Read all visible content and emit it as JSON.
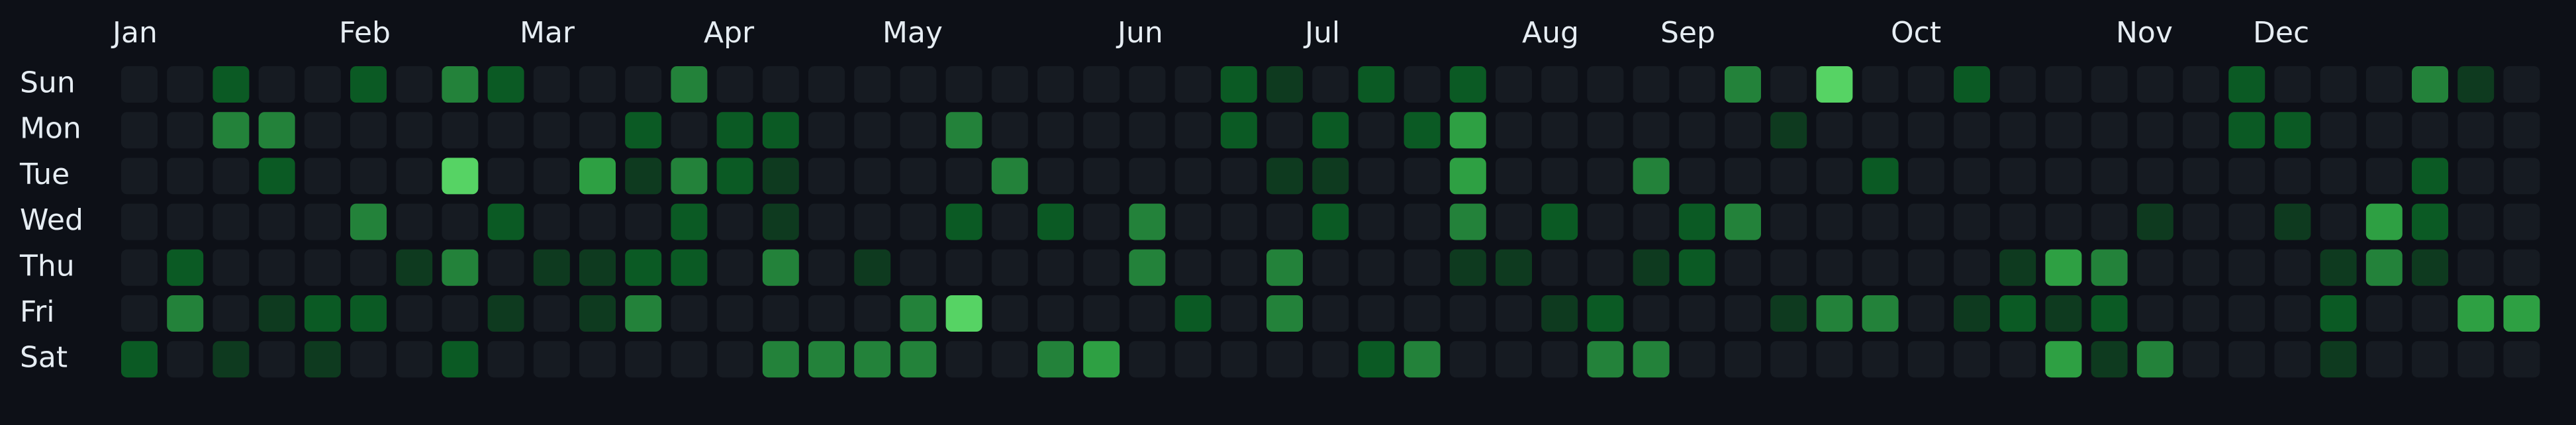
{
  "title": "",
  "months": [
    "Jan",
    "Feb",
    "Mar",
    "Apr",
    "May",
    "Jun",
    "Jul",
    "Aug",
    "Sep",
    "Oct",
    "Nov",
    "Dec"
  ],
  "weekday_labels": [
    "Sun",
    "Mon",
    "Tue",
    "Wed",
    "Thu",
    "Fri",
    "Sat"
  ],
  "level_colors": [
    "#161b22",
    "#0e3a1f",
    "#0b5a24",
    "#23823a",
    "#2ea043",
    "#56d364"
  ],
  "background_color": "#0d1017",
  "text_color": "#e6edf3",
  "grid": {
    "weeks": 53,
    "rows": [
      [
        0,
        0,
        2,
        0,
        0,
        2,
        0,
        3,
        2,
        0,
        0,
        0,
        3,
        0,
        0,
        0,
        0,
        0,
        0,
        0,
        0,
        0,
        0,
        0,
        2,
        1,
        0,
        2,
        0,
        2,
        0,
        0,
        0,
        0,
        0,
        3,
        0,
        5,
        0,
        0,
        2,
        0,
        0,
        0,
        0,
        0,
        2,
        0,
        0,
        0,
        3,
        1,
        0
      ],
      [
        0,
        0,
        3,
        3,
        0,
        0,
        0,
        0,
        0,
        0,
        0,
        2,
        0,
        2,
        2,
        0,
        0,
        0,
        3,
        0,
        0,
        0,
        0,
        0,
        2,
        0,
        2,
        0,
        2,
        4,
        0,
        0,
        0,
        0,
        0,
        0,
        1,
        0,
        0,
        0,
        0,
        0,
        0,
        0,
        0,
        0,
        2,
        2,
        0,
        0,
        0,
        0,
        0
      ],
      [
        0,
        0,
        0,
        2,
        0,
        0,
        0,
        5,
        0,
        0,
        4,
        1,
        3,
        2,
        1,
        0,
        0,
        0,
        0,
        3,
        0,
        0,
        0,
        0,
        0,
        1,
        1,
        0,
        0,
        4,
        0,
        0,
        0,
        3,
        0,
        0,
        0,
        0,
        2,
        0,
        0,
        0,
        0,
        0,
        0,
        0,
        0,
        0,
        0,
        0,
        2,
        0,
        0
      ],
      [
        0,
        0,
        0,
        0,
        0,
        3,
        0,
        0,
        2,
        0,
        0,
        0,
        2,
        0,
        1,
        0,
        0,
        0,
        2,
        0,
        2,
        0,
        3,
        0,
        0,
        0,
        2,
        0,
        0,
        3,
        0,
        2,
        0,
        0,
        2,
        3,
        0,
        0,
        0,
        0,
        0,
        0,
        0,
        0,
        1,
        0,
        0,
        1,
        0,
        4,
        2,
        0,
        0
      ],
      [
        0,
        2,
        0,
        0,
        0,
        0,
        1,
        3,
        0,
        1,
        1,
        2,
        2,
        0,
        3,
        0,
        1,
        0,
        0,
        0,
        0,
        0,
        3,
        0,
        0,
        3,
        0,
        0,
        0,
        1,
        1,
        0,
        0,
        1,
        2,
        0,
        0,
        0,
        0,
        0,
        0,
        1,
        4,
        3,
        0,
        0,
        0,
        0,
        1,
        3,
        1,
        0,
        0
      ],
      [
        0,
        3,
        0,
        1,
        2,
        2,
        0,
        0,
        1,
        0,
        1,
        3,
        0,
        0,
        0,
        0,
        0,
        3,
        5,
        0,
        0,
        0,
        0,
        2,
        0,
        3,
        0,
        0,
        0,
        0,
        0,
        1,
        2,
        0,
        0,
        0,
        1,
        3,
        3,
        0,
        1,
        2,
        1,
        2,
        0,
        0,
        0,
        0,
        2,
        0,
        0,
        4,
        4
      ],
      [
        2,
        0,
        1,
        0,
        1,
        0,
        0,
        2,
        0,
        0,
        0,
        0,
        0,
        0,
        3,
        3,
        3,
        3,
        0,
        0,
        3,
        4,
        0,
        0,
        0,
        0,
        0,
        2,
        3,
        0,
        0,
        0,
        3,
        3,
        0,
        0,
        0,
        0,
        0,
        0,
        0,
        0,
        4,
        1,
        3,
        0,
        0,
        0,
        1,
        0,
        0,
        0,
        0
      ]
    ]
  }
}
